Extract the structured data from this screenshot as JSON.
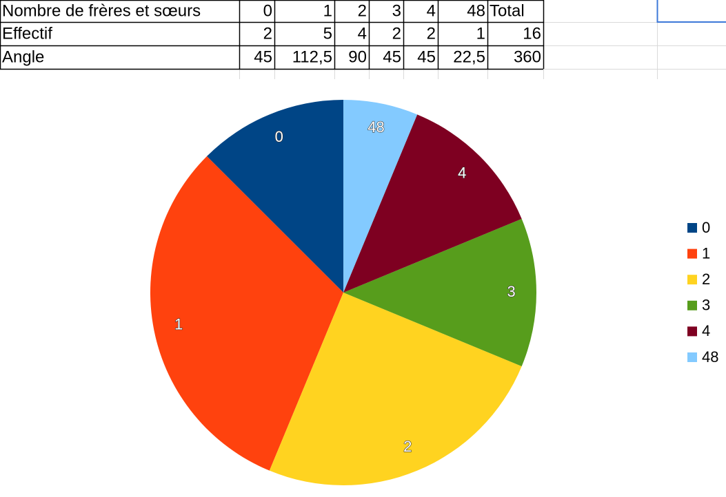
{
  "table": {
    "rows": [
      [
        "Nombre de frères et sœurs",
        "0",
        "1",
        "2",
        "3",
        "4",
        "48",
        "Total"
      ],
      [
        "Effectif",
        "2",
        "5",
        "4",
        "2",
        "2",
        "1",
        "16"
      ],
      [
        "Angle",
        "45",
        "112,5",
        "90",
        "45",
        "45",
        "22,5",
        "360"
      ]
    ]
  },
  "chart_data": {
    "type": "pie",
    "categories": [
      "0",
      "1",
      "2",
      "3",
      "4",
      "48"
    ],
    "values": [
      2,
      5,
      4,
      2,
      2,
      1
    ],
    "colors": [
      "#004586",
      "#ff420e",
      "#ffd320",
      "#579d1c",
      "#7e0021",
      "#83caff"
    ],
    "legend": "right"
  }
}
